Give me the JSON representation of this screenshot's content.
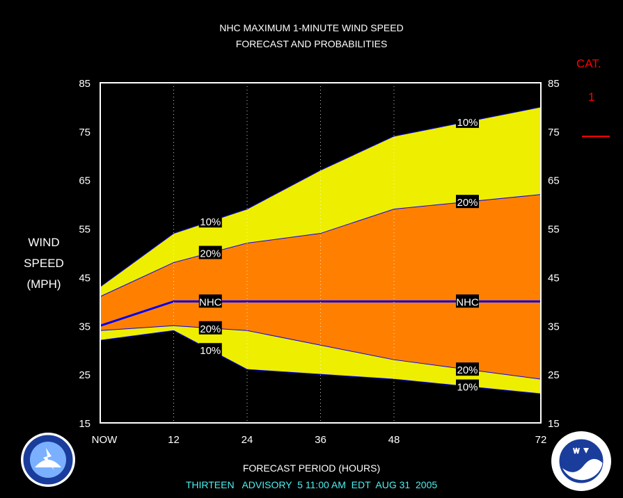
{
  "header": {
    "title_line1": "NHC MAXIMUM 1-MINUTE WIND SPEED",
    "title_line2": "FORECAST AND PROBABILITIES"
  },
  "y_axis_label": [
    "WIND",
    "SPEED",
    "(MPH)"
  ],
  "category": {
    "label": "CAT.",
    "value": "1",
    "color": "#ff0000"
  },
  "footer": {
    "xlabel": "FORECAST PERIOD (HOURS)",
    "advisory": "THIRTEEN   ADVISORY  5 11:00 AM  EDT  AUG 31  2005"
  },
  "logos": {
    "left": "nws-logo",
    "right": "noaa-logo"
  },
  "colors": {
    "outer_band": "#eeee00",
    "inner_band": "#ff8000",
    "nhc_line": "#0000ff",
    "plot_border": "#ffffff",
    "cat_line": "#ff0000"
  },
  "chart_data": {
    "type": "area",
    "x": [
      0,
      12,
      24,
      36,
      48,
      72
    ],
    "x_tick_labels": [
      "NOW",
      "12",
      "24",
      "36",
      "48",
      "72"
    ],
    "xlim": [
      0,
      72
    ],
    "ylim": [
      15,
      85
    ],
    "y_ticks": [
      15,
      25,
      35,
      45,
      55,
      65,
      75,
      85
    ],
    "grid_x": true,
    "cat_threshold_line": 74,
    "series": [
      {
        "name": "10%",
        "values_upper": [
          43,
          54,
          59,
          67,
          74,
          80
        ],
        "values_lower": [
          32,
          34,
          26,
          25,
          24,
          21
        ]
      },
      {
        "name": "20%",
        "values_upper": [
          41,
          48,
          52,
          54,
          59,
          62
        ],
        "values_lower": [
          34,
          35,
          34,
          31,
          28,
          24
        ]
      },
      {
        "name": "NHC",
        "values": [
          35,
          40,
          40,
          40,
          40,
          40
        ]
      }
    ],
    "annotations": [
      "10%",
      "20%",
      "NHC",
      "20%",
      "10%",
      "10%",
      "20%",
      "NHC",
      "20%",
      "10%"
    ]
  }
}
